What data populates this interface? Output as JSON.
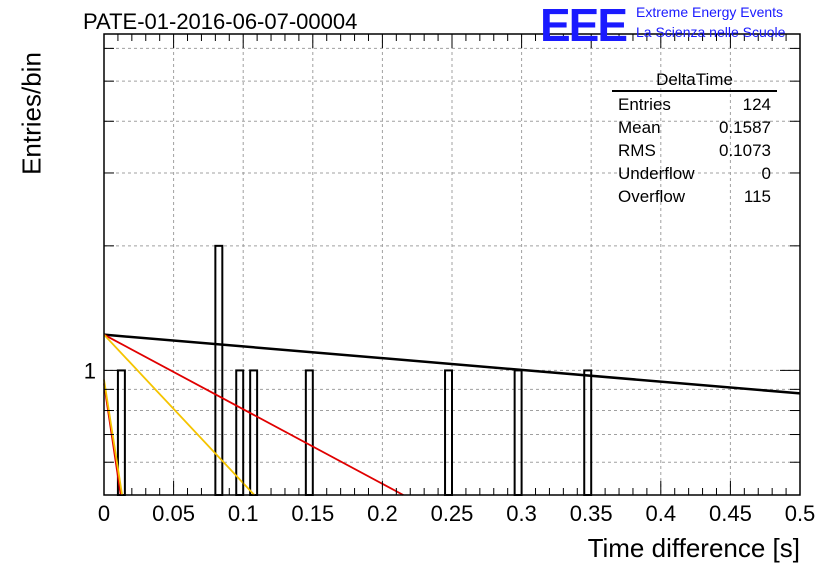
{
  "header": {
    "title": "PATE-01-2016-06-07-00004",
    "logo_text": "EEE",
    "logo_line1": "Extreme Energy Events",
    "logo_line2": "La Scienza nelle Scuole",
    "logo_color": "#1a1aff"
  },
  "stats": {
    "title": "DeltaTime",
    "rows": [
      {
        "label": "Entries",
        "value": "124"
      },
      {
        "label": "Mean",
        "value": "0.1587"
      },
      {
        "label": "RMS",
        "value": "0.1073"
      },
      {
        "label": "Underflow",
        "value": "0"
      },
      {
        "label": "Overflow",
        "value": "115"
      }
    ]
  },
  "chart_data": {
    "type": "bar",
    "title": "PATE-01-2016-06-07-00004",
    "xlabel": "Time difference [s]",
    "ylabel": "Entries/bin",
    "xlim": [
      0,
      0.5
    ],
    "ylog": true,
    "grid": true,
    "x_ticks": [
      "0",
      "0.05",
      "0.1",
      "0.15",
      "0.2",
      "0.25",
      "0.3",
      "0.35",
      "0.4",
      "0.45",
      "0.5"
    ],
    "y_ticks": [
      "1"
    ],
    "bin_width": 0.005,
    "bins": [
      {
        "x": 0.01,
        "value": 1
      },
      {
        "x": 0.08,
        "value": 2
      },
      {
        "x": 0.095,
        "value": 1
      },
      {
        "x": 0.105,
        "value": 1
      },
      {
        "x": 0.145,
        "value": 1
      },
      {
        "x": 0.245,
        "value": 1
      },
      {
        "x": 0.295,
        "value": 1
      },
      {
        "x": 0.345,
        "value": 1
      }
    ],
    "fits": [
      {
        "color": "#000000",
        "points": [
          [
            0.0,
            1.22
          ],
          [
            0.5,
            0.88
          ]
        ]
      },
      {
        "color": "#e00000",
        "points": [
          [
            0.0,
            1.22
          ],
          [
            0.215,
            0.5
          ]
        ]
      },
      {
        "color": "#f5c400",
        "points": [
          [
            0.0,
            1.22
          ],
          [
            0.108,
            0.5
          ]
        ]
      },
      {
        "color": "#e00000",
        "points": [
          [
            0.0,
            0.93
          ],
          [
            0.012,
            0.5
          ]
        ]
      },
      {
        "color": "#f5c400",
        "points": [
          [
            0.0,
            0.95
          ],
          [
            0.013,
            0.5
          ]
        ]
      }
    ]
  }
}
